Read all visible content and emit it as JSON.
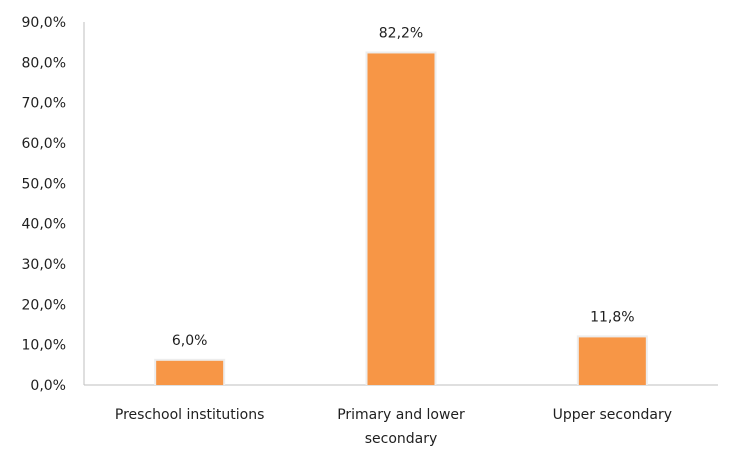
{
  "chart_data": {
    "type": "bar",
    "categories": [
      [
        "Preschool institutions"
      ],
      [
        "Primary and lower",
        "secondary"
      ],
      [
        "Upper secondary"
      ]
    ],
    "values": [
      6.0,
      82.2,
      11.8
    ],
    "data_labels": [
      "6,0%",
      "82,2%",
      "11,8%"
    ],
    "y_ticks": [
      "0,0%",
      "10,0%",
      "20,0%",
      "30,0%",
      "40,0%",
      "50,0%",
      "60,0%",
      "70,0%",
      "80,0%",
      "90,0%"
    ],
    "ylim": [
      0,
      90
    ],
    "grid": false,
    "legend": "none",
    "bar_color": "#F79646",
    "axis_color": "#BFBFBF"
  }
}
